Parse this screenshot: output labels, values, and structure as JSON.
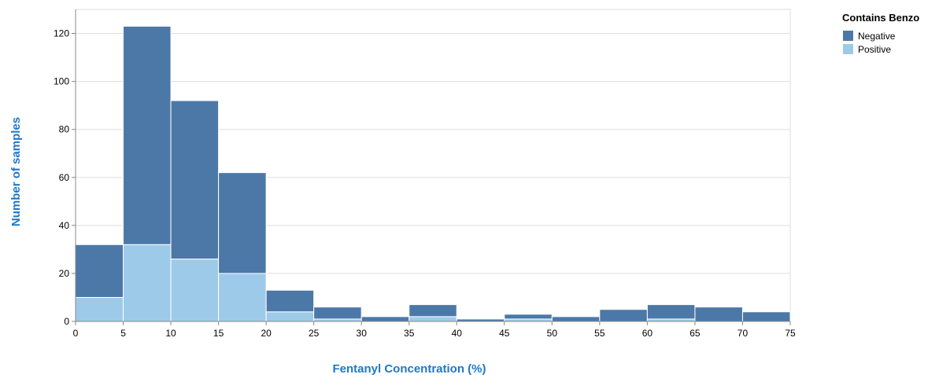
{
  "chart_data": {
    "type": "bar",
    "stacked": true,
    "xlabel": "Fentanyl Concentration (%)",
    "ylabel": "Number of samples",
    "bin_edges": [
      0,
      5,
      10,
      15,
      20,
      25,
      30,
      35,
      40,
      45,
      50,
      55,
      60,
      65,
      70,
      75
    ],
    "x_ticks": [
      "0",
      "5",
      "10",
      "15",
      "20",
      "25",
      "30",
      "35",
      "40",
      "45",
      "50",
      "55",
      "60",
      "65",
      "70",
      "75"
    ],
    "y_ticks": [
      "0",
      "20",
      "40",
      "60",
      "80",
      "100",
      "120"
    ],
    "ylim": [
      0,
      130
    ],
    "xlim": [
      0,
      75
    ],
    "grid": true,
    "legend": {
      "title": "Contains Benzo",
      "position": "top-right"
    },
    "series": [
      {
        "name": "Negative",
        "color": "#4c78a8",
        "values": [
          22,
          91,
          66,
          42,
          9,
          5,
          2,
          5,
          1,
          2,
          2,
          5,
          6,
          6,
          4
        ]
      },
      {
        "name": "Positive",
        "color": "#9ecae9",
        "values": [
          10,
          32,
          26,
          20,
          4,
          1,
          0,
          2,
          0,
          1,
          0,
          0,
          1,
          0,
          0
        ]
      }
    ],
    "axis_title_color": "#1f78c8"
  }
}
